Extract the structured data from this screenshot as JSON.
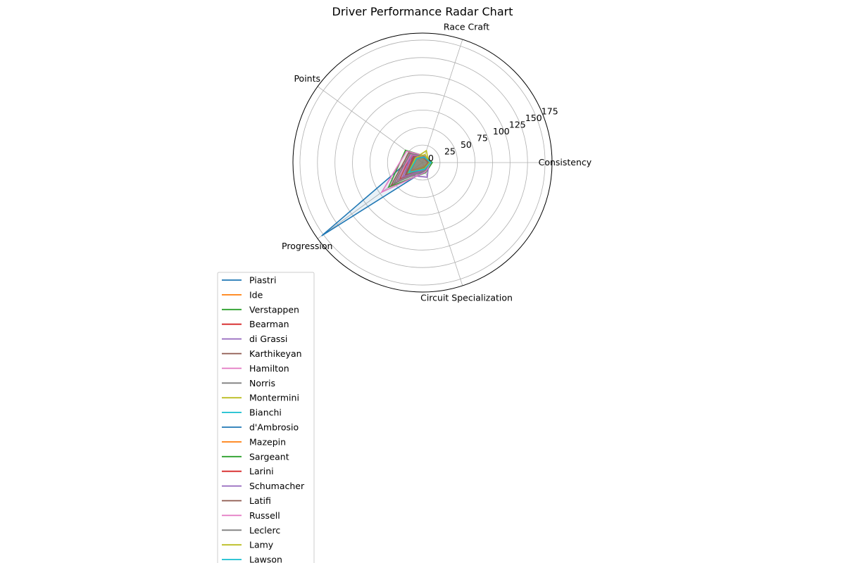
{
  "chart_data": {
    "type": "radar",
    "title": "Driver Performance Radar Chart",
    "axes": [
      "Consistency",
      "Race Craft",
      "Points",
      "Progression",
      "Circuit Specialization"
    ],
    "radial_ticks": [
      0,
      25,
      50,
      75,
      100,
      125,
      150,
      175
    ],
    "rlim": [
      0,
      185
    ],
    "grid": true,
    "legend_placement": "lower-left",
    "palette": [
      "#1f77b4",
      "#ff7f0e",
      "#2ca02c",
      "#d62728",
      "#9467bd",
      "#8c564b",
      "#e377c2",
      "#7f7f7f",
      "#bcbd22",
      "#17becf"
    ],
    "series": [
      {
        "name": "Piastri",
        "values": [
          12,
          8,
          15,
          178,
          12
        ]
      },
      {
        "name": "Ide",
        "values": [
          8,
          6,
          10,
          20,
          6
        ]
      },
      {
        "name": "Verstappen",
        "values": [
          14,
          10,
          30,
          60,
          15
        ]
      },
      {
        "name": "Bearman",
        "values": [
          10,
          8,
          20,
          40,
          10
        ]
      },
      {
        "name": "di Grassi",
        "values": [
          9,
          10,
          22,
          30,
          22
        ]
      },
      {
        "name": "Karthikeyan",
        "values": [
          8,
          7,
          24,
          55,
          9
        ]
      },
      {
        "name": "Hamilton",
        "values": [
          12,
          10,
          28,
          72,
          14
        ]
      },
      {
        "name": "Norris",
        "values": [
          10,
          9,
          22,
          45,
          11
        ]
      },
      {
        "name": "Montermini",
        "values": [
          9,
          18,
          12,
          25,
          10
        ]
      },
      {
        "name": "Bianchi",
        "values": [
          10,
          8,
          14,
          30,
          10
        ]
      },
      {
        "name": "d'Ambrosio",
        "values": [
          9,
          7,
          15,
          30,
          8
        ]
      },
      {
        "name": "Mazepin",
        "values": [
          8,
          6,
          12,
          25,
          7
        ]
      },
      {
        "name": "Sargeant",
        "values": [
          9,
          7,
          14,
          28,
          8
        ]
      },
      {
        "name": "Larini",
        "values": [
          8,
          7,
          16,
          30,
          9
        ]
      },
      {
        "name": "Schumacher",
        "values": [
          10,
          8,
          18,
          35,
          10
        ]
      },
      {
        "name": "Latifi",
        "values": [
          9,
          7,
          14,
          30,
          9
        ]
      },
      {
        "name": "Russell",
        "values": [
          11,
          9,
          20,
          48,
          12
        ]
      },
      {
        "name": "Leclerc",
        "values": [
          11,
          9,
          22,
          50,
          12
        ]
      },
      {
        "name": "Lamy",
        "values": [
          10,
          12,
          12,
          25,
          9
        ]
      },
      {
        "name": "Lawson",
        "values": [
          12,
          8,
          10,
          24,
          10
        ]
      }
    ]
  }
}
